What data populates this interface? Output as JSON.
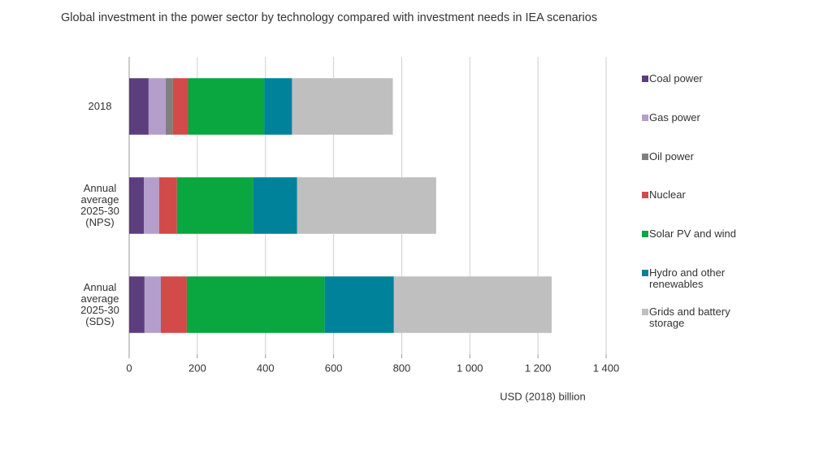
{
  "chart_data": {
    "type": "stacked-barh",
    "title": "Global investment in the power sector by technology compared with investment needs in IEA scenarios",
    "xlabel": "USD (2018) billion",
    "categories": [
      "2018",
      "Annual average 2025-30 (NPS)",
      "Annual average 2025-30 (SDS)"
    ],
    "series": [
      {
        "name": "Coal power",
        "color": "#5c3d7e",
        "values": [
          57,
          43,
          45
        ]
      },
      {
        "name": "Gas power",
        "color": "#b49fcc",
        "values": [
          50,
          45,
          48
        ]
      },
      {
        "name": "Oil power",
        "color": "#7f7f7f",
        "values": [
          21,
          0,
          0
        ]
      },
      {
        "name": "Nuclear",
        "color": "#d24a4a",
        "values": [
          45,
          52,
          76
        ]
      },
      {
        "name": "Solar PV and wind",
        "color": "#0aa63f",
        "values": [
          224,
          224,
          405
        ]
      },
      {
        "name": "Hydro and other renewables",
        "color": "#00829b",
        "values": [
          81,
          129,
          203
        ]
      },
      {
        "name": "Grids and battery storage",
        "color": "#bfbfbf",
        "values": [
          296,
          408,
          463
        ]
      }
    ],
    "xlim": [
      0,
      1400
    ],
    "xticks": [
      0,
      200,
      400,
      600,
      800,
      {
        "value": 1000,
        "label": "1 000"
      },
      {
        "value": 1200,
        "label": "1 200"
      },
      {
        "value": 1400,
        "label": "1 400"
      }
    ],
    "grid": true,
    "legend": "right"
  }
}
